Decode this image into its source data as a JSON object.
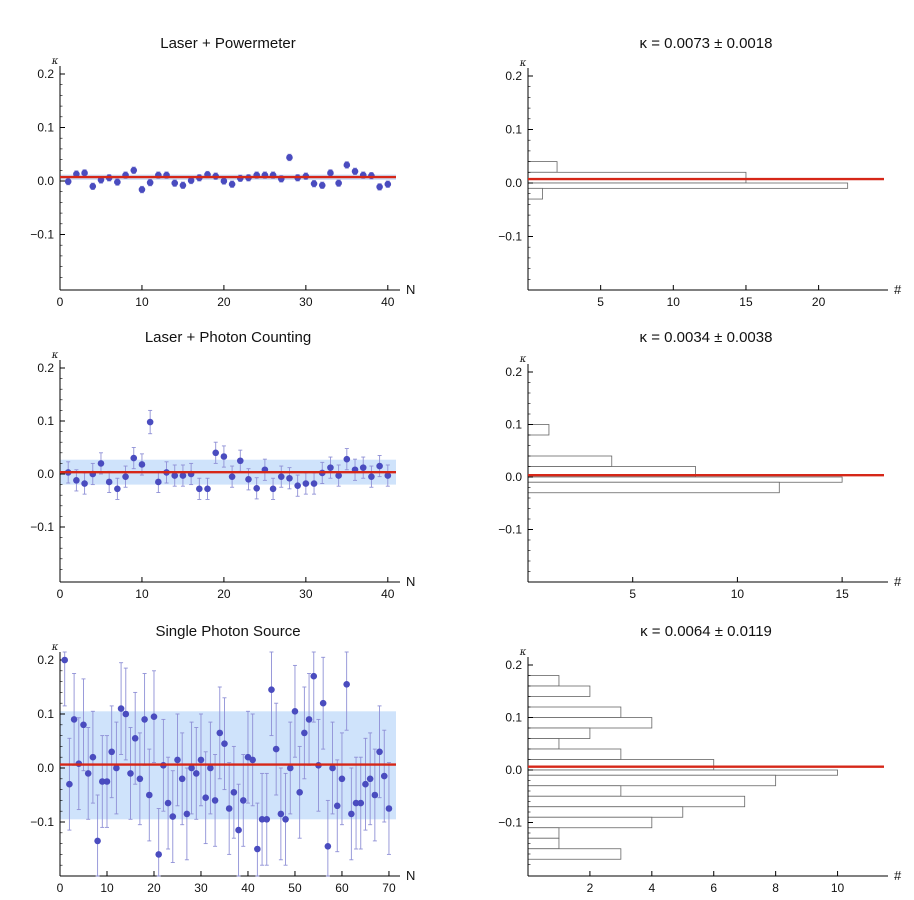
{
  "colors": {
    "point": "#4a4cbf",
    "errorbar": "#8f90d6",
    "band": "#cfe3fb",
    "fit": "#d62718",
    "hist_edge": "#666666",
    "axis": "#000000"
  },
  "chart_data": [
    {
      "type": "scatter",
      "title": "Laser + Powermeter",
      "xlabel": "N",
      "ylabel": "κ",
      "xlim": [
        0,
        41
      ],
      "ylim": [
        -0.2,
        0.2
      ],
      "xticks": [
        0,
        10,
        20,
        30,
        40
      ],
      "xtick_labels": [
        "0",
        "10",
        "20",
        "30",
        "40"
      ],
      "yticks": [
        0.2,
        0.1,
        0.0,
        -0.1
      ],
      "ytick_labels": [
        "0.2",
        "0.1",
        "0.0",
        "−0.1"
      ],
      "mean": 0.0073,
      "band": [
        0.002,
        0.012
      ],
      "points": [
        {
          "x": 1,
          "y": -0.001,
          "err": 0.006
        },
        {
          "x": 2,
          "y": 0.013,
          "err": 0.006
        },
        {
          "x": 3,
          "y": 0.015,
          "err": 0.006
        },
        {
          "x": 4,
          "y": -0.01,
          "err": 0.006
        },
        {
          "x": 5,
          "y": 0.002,
          "err": 0.006
        },
        {
          "x": 6,
          "y": 0.006,
          "err": 0.006
        },
        {
          "x": 7,
          "y": -0.002,
          "err": 0.006
        },
        {
          "x": 8,
          "y": 0.011,
          "err": 0.006
        },
        {
          "x": 9,
          "y": 0.02,
          "err": 0.006
        },
        {
          "x": 10,
          "y": -0.016,
          "err": 0.006
        },
        {
          "x": 11,
          "y": -0.003,
          "err": 0.006
        },
        {
          "x": 12,
          "y": 0.011,
          "err": 0.006
        },
        {
          "x": 13,
          "y": 0.011,
          "err": 0.006
        },
        {
          "x": 14,
          "y": -0.004,
          "err": 0.006
        },
        {
          "x": 15,
          "y": -0.008,
          "err": 0.006
        },
        {
          "x": 16,
          "y": 0.001,
          "err": 0.006
        },
        {
          "x": 17,
          "y": 0.006,
          "err": 0.006
        },
        {
          "x": 18,
          "y": 0.012,
          "err": 0.006
        },
        {
          "x": 19,
          "y": 0.009,
          "err": 0.006
        },
        {
          "x": 20,
          "y": 0.0,
          "err": 0.006
        },
        {
          "x": 21,
          "y": -0.006,
          "err": 0.006
        },
        {
          "x": 22,
          "y": 0.005,
          "err": 0.006
        },
        {
          "x": 23,
          "y": 0.006,
          "err": 0.006
        },
        {
          "x": 24,
          "y": 0.011,
          "err": 0.006
        },
        {
          "x": 25,
          "y": 0.011,
          "err": 0.006
        },
        {
          "x": 26,
          "y": 0.011,
          "err": 0.006
        },
        {
          "x": 27,
          "y": 0.004,
          "err": 0.006
        },
        {
          "x": 28,
          "y": 0.044,
          "err": 0.006
        },
        {
          "x": 29,
          "y": 0.006,
          "err": 0.006
        },
        {
          "x": 30,
          "y": 0.009,
          "err": 0.006
        },
        {
          "x": 31,
          "y": -0.005,
          "err": 0.006
        },
        {
          "x": 32,
          "y": -0.008,
          "err": 0.006
        },
        {
          "x": 33,
          "y": 0.015,
          "err": 0.006
        },
        {
          "x": 34,
          "y": -0.004,
          "err": 0.006
        },
        {
          "x": 35,
          "y": 0.03,
          "err": 0.006
        },
        {
          "x": 36,
          "y": 0.018,
          "err": 0.006
        },
        {
          "x": 37,
          "y": 0.011,
          "err": 0.006
        },
        {
          "x": 38,
          "y": 0.01,
          "err": 0.006
        },
        {
          "x": 39,
          "y": -0.011,
          "err": 0.006
        },
        {
          "x": 40,
          "y": -0.006,
          "err": 0.006
        }
      ]
    },
    {
      "type": "bar",
      "orientation": "horizontal",
      "title": "κ = 0.0073 ± 0.0018",
      "xlabel": "#",
      "ylabel": "κ",
      "xlim": [
        0,
        24.5
      ],
      "ylim": [
        -0.2,
        0.2
      ],
      "xticks": [
        5,
        10,
        15,
        20
      ],
      "xtick_labels": [
        "5",
        "10",
        "15",
        "20"
      ],
      "yticks": [
        0.2,
        0.1,
        0.0,
        -0.1
      ],
      "ytick_labels": [
        "0.2",
        "0.1",
        "0.0",
        "−0.1"
      ],
      "mean": 0.0073,
      "bins": [
        {
          "lo": 0.02,
          "hi": 0.04,
          "count": 2
        },
        {
          "lo": 0.0,
          "hi": 0.02,
          "count": 15
        },
        {
          "lo": -0.01,
          "hi": 0.0,
          "count": 22
        },
        {
          "lo": -0.03,
          "hi": -0.01,
          "count": 1
        }
      ]
    },
    {
      "type": "scatter",
      "title": "Laser + Photon Counting",
      "xlabel": "N",
      "ylabel": "κ",
      "xlim": [
        0,
        41
      ],
      "ylim": [
        -0.2,
        0.2
      ],
      "xticks": [
        0,
        10,
        20,
        30,
        40
      ],
      "xtick_labels": [
        "0",
        "10",
        "20",
        "30",
        "40"
      ],
      "yticks": [
        0.2,
        0.1,
        0.0,
        -0.1
      ],
      "ytick_labels": [
        "0.2",
        "0.1",
        "0.0",
        "−0.1"
      ],
      "mean": 0.0034,
      "band": [
        -0.02,
        0.027
      ],
      "points": [
        {
          "x": 1,
          "y": 0.003,
          "err": 0.02
        },
        {
          "x": 2,
          "y": -0.012,
          "err": 0.02
        },
        {
          "x": 3,
          "y": -0.018,
          "err": 0.02
        },
        {
          "x": 4,
          "y": 0.0,
          "err": 0.02
        },
        {
          "x": 5,
          "y": 0.02,
          "err": 0.02
        },
        {
          "x": 6,
          "y": -0.015,
          "err": 0.02
        },
        {
          "x": 7,
          "y": -0.028,
          "err": 0.02
        },
        {
          "x": 8,
          "y": -0.005,
          "err": 0.02
        },
        {
          "x": 9,
          "y": 0.03,
          "err": 0.02
        },
        {
          "x": 10,
          "y": 0.018,
          "err": 0.02
        },
        {
          "x": 11,
          "y": 0.098,
          "err": 0.022
        },
        {
          "x": 12,
          "y": -0.015,
          "err": 0.02
        },
        {
          "x": 13,
          "y": 0.003,
          "err": 0.02
        },
        {
          "x": 14,
          "y": -0.003,
          "err": 0.02
        },
        {
          "x": 15,
          "y": -0.003,
          "err": 0.02
        },
        {
          "x": 16,
          "y": 0.0,
          "err": 0.02
        },
        {
          "x": 17,
          "y": -0.028,
          "err": 0.02
        },
        {
          "x": 18,
          "y": -0.028,
          "err": 0.02
        },
        {
          "x": 19,
          "y": 0.04,
          "err": 0.02
        },
        {
          "x": 20,
          "y": 0.033,
          "err": 0.02
        },
        {
          "x": 21,
          "y": -0.005,
          "err": 0.02
        },
        {
          "x": 22,
          "y": 0.025,
          "err": 0.02
        },
        {
          "x": 23,
          "y": -0.01,
          "err": 0.02
        },
        {
          "x": 24,
          "y": -0.027,
          "err": 0.02
        },
        {
          "x": 25,
          "y": 0.008,
          "err": 0.02
        },
        {
          "x": 26,
          "y": -0.028,
          "err": 0.02
        },
        {
          "x": 27,
          "y": -0.005,
          "err": 0.02
        },
        {
          "x": 28,
          "y": -0.008,
          "err": 0.02
        },
        {
          "x": 29,
          "y": -0.022,
          "err": 0.02
        },
        {
          "x": 30,
          "y": -0.018,
          "err": 0.02
        },
        {
          "x": 31,
          "y": -0.018,
          "err": 0.02
        },
        {
          "x": 32,
          "y": 0.002,
          "err": 0.02
        },
        {
          "x": 33,
          "y": 0.012,
          "err": 0.02
        },
        {
          "x": 34,
          "y": -0.003,
          "err": 0.02
        },
        {
          "x": 35,
          "y": 0.028,
          "err": 0.02
        },
        {
          "x": 36,
          "y": 0.008,
          "err": 0.02
        },
        {
          "x": 37,
          "y": 0.012,
          "err": 0.02
        },
        {
          "x": 38,
          "y": -0.005,
          "err": 0.02
        },
        {
          "x": 39,
          "y": 0.015,
          "err": 0.02
        },
        {
          "x": 40,
          "y": -0.003,
          "err": 0.02
        }
      ]
    },
    {
      "type": "bar",
      "orientation": "horizontal",
      "title": "κ = 0.0034 ± 0.0038",
      "xlabel": "#",
      "ylabel": "κ",
      "xlim": [
        0,
        17
      ],
      "ylim": [
        -0.2,
        0.2
      ],
      "xticks": [
        5,
        10,
        15
      ],
      "xtick_labels": [
        "5",
        "10",
        "15"
      ],
      "yticks": [
        0.2,
        0.1,
        0.0,
        -0.1
      ],
      "ytick_labels": [
        "0.2",
        "0.1",
        "0.0",
        "−0.1"
      ],
      "mean": 0.0034,
      "bins": [
        {
          "lo": 0.08,
          "hi": 0.1,
          "count": 1
        },
        {
          "lo": 0.02,
          "hi": 0.04,
          "count": 4
        },
        {
          "lo": 0.0,
          "hi": 0.02,
          "count": 8
        },
        {
          "lo": -0.01,
          "hi": 0.0,
          "count": 15
        },
        {
          "lo": -0.03,
          "hi": -0.01,
          "count": 12
        }
      ]
    },
    {
      "type": "scatter",
      "title": "Single Photon Source",
      "xlabel": "N",
      "ylabel": "κ",
      "xlim": [
        0,
        71.5
      ],
      "ylim": [
        -0.2,
        0.2
      ],
      "xticks": [
        0,
        10,
        20,
        30,
        40,
        50,
        60,
        70
      ],
      "xtick_labels": [
        "0",
        "10",
        "20",
        "30",
        "40",
        "50",
        "60",
        "70"
      ],
      "yticks": [
        0.2,
        0.1,
        0.0,
        -0.1
      ],
      "ytick_labels": [
        "0.2",
        "0.1",
        "0.0",
        "−0.1"
      ],
      "mean": 0.0064,
      "band": [
        -0.095,
        0.105
      ],
      "points": [
        {
          "x": 1,
          "y": 0.2,
          "err": 0.085
        },
        {
          "x": 2,
          "y": -0.03,
          "err": 0.085
        },
        {
          "x": 3,
          "y": 0.09,
          "err": 0.085
        },
        {
          "x": 4,
          "y": 0.008,
          "err": 0.085
        },
        {
          "x": 5,
          "y": 0.08,
          "err": 0.085
        },
        {
          "x": 6,
          "y": -0.01,
          "err": 0.085
        },
        {
          "x": 7,
          "y": 0.02,
          "err": 0.085
        },
        {
          "x": 8,
          "y": -0.135,
          "err": 0.085
        },
        {
          "x": 9,
          "y": -0.025,
          "err": 0.085
        },
        {
          "x": 10,
          "y": -0.025,
          "err": 0.085
        },
        {
          "x": 11,
          "y": 0.03,
          "err": 0.085
        },
        {
          "x": 12,
          "y": 0.0,
          "err": 0.085
        },
        {
          "x": 13,
          "y": 0.11,
          "err": 0.085
        },
        {
          "x": 14,
          "y": 0.1,
          "err": 0.085
        },
        {
          "x": 15,
          "y": -0.01,
          "err": 0.085
        },
        {
          "x": 16,
          "y": 0.055,
          "err": 0.085
        },
        {
          "x": 17,
          "y": -0.02,
          "err": 0.085
        },
        {
          "x": 18,
          "y": 0.09,
          "err": 0.085
        },
        {
          "x": 19,
          "y": -0.05,
          "err": 0.085
        },
        {
          "x": 20,
          "y": 0.095,
          "err": 0.085
        },
        {
          "x": 21,
          "y": -0.16,
          "err": 0.085
        },
        {
          "x": 22,
          "y": 0.005,
          "err": 0.085
        },
        {
          "x": 23,
          "y": -0.065,
          "err": 0.085
        },
        {
          "x": 24,
          "y": -0.09,
          "err": 0.085
        },
        {
          "x": 25,
          "y": 0.015,
          "err": 0.085
        },
        {
          "x": 26,
          "y": -0.02,
          "err": 0.085
        },
        {
          "x": 27,
          "y": -0.085,
          "err": 0.085
        },
        {
          "x": 28,
          "y": 0.0,
          "err": 0.085
        },
        {
          "x": 29,
          "y": -0.01,
          "err": 0.085
        },
        {
          "x": 30,
          "y": 0.015,
          "err": 0.085
        },
        {
          "x": 31,
          "y": -0.055,
          "err": 0.085
        },
        {
          "x": 32,
          "y": 0.0,
          "err": 0.085
        },
        {
          "x": 33,
          "y": -0.06,
          "err": 0.085
        },
        {
          "x": 34,
          "y": 0.065,
          "err": 0.085
        },
        {
          "x": 35,
          "y": 0.045,
          "err": 0.085
        },
        {
          "x": 36,
          "y": -0.075,
          "err": 0.085
        },
        {
          "x": 37,
          "y": -0.045,
          "err": 0.085
        },
        {
          "x": 38,
          "y": -0.115,
          "err": 0.085
        },
        {
          "x": 39,
          "y": -0.06,
          "err": 0.085
        },
        {
          "x": 40,
          "y": 0.02,
          "err": 0.085
        },
        {
          "x": 41,
          "y": 0.015,
          "err": 0.085
        },
        {
          "x": 42,
          "y": -0.15,
          "err": 0.085
        },
        {
          "x": 43,
          "y": -0.095,
          "err": 0.085
        },
        {
          "x": 44,
          "y": -0.095,
          "err": 0.085
        },
        {
          "x": 45,
          "y": 0.145,
          "err": 0.085
        },
        {
          "x": 46,
          "y": 0.035,
          "err": 0.085
        },
        {
          "x": 47,
          "y": -0.085,
          "err": 0.085
        },
        {
          "x": 48,
          "y": -0.095,
          "err": 0.085
        },
        {
          "x": 49,
          "y": 0.0,
          "err": 0.085
        },
        {
          "x": 50,
          "y": 0.105,
          "err": 0.085
        },
        {
          "x": 51,
          "y": -0.045,
          "err": 0.085
        },
        {
          "x": 52,
          "y": 0.065,
          "err": 0.085
        },
        {
          "x": 53,
          "y": 0.09,
          "err": 0.085
        },
        {
          "x": 54,
          "y": 0.17,
          "err": 0.085
        },
        {
          "x": 55,
          "y": 0.005,
          "err": 0.085
        },
        {
          "x": 56,
          "y": 0.12,
          "err": 0.085
        },
        {
          "x": 57,
          "y": -0.145,
          "err": 0.085
        },
        {
          "x": 58,
          "y": 0.0,
          "err": 0.085
        },
        {
          "x": 59,
          "y": -0.07,
          "err": 0.085
        },
        {
          "x": 60,
          "y": -0.02,
          "err": 0.085
        },
        {
          "x": 61,
          "y": 0.155,
          "err": 0.085
        },
        {
          "x": 62,
          "y": -0.085,
          "err": 0.085
        },
        {
          "x": 63,
          "y": -0.065,
          "err": 0.085
        },
        {
          "x": 64,
          "y": -0.065,
          "err": 0.085
        },
        {
          "x": 65,
          "y": -0.03,
          "err": 0.085
        },
        {
          "x": 66,
          "y": -0.02,
          "err": 0.085
        },
        {
          "x": 67,
          "y": -0.05,
          "err": 0.085
        },
        {
          "x": 68,
          "y": 0.03,
          "err": 0.085
        },
        {
          "x": 69,
          "y": -0.015,
          "err": 0.085
        },
        {
          "x": 70,
          "y": -0.075,
          "err": 0.085
        }
      ]
    },
    {
      "type": "bar",
      "orientation": "horizontal",
      "title": "κ = 0.0064 ± 0.0119",
      "xlabel": "#",
      "ylabel": "κ",
      "xlim": [
        0,
        11.5
      ],
      "ylim": [
        -0.2,
        0.2
      ],
      "xticks": [
        2,
        4,
        6,
        8,
        10
      ],
      "xtick_labels": [
        "2",
        "4",
        "6",
        "8",
        "10"
      ],
      "yticks": [
        0.2,
        0.1,
        0.0,
        -0.1
      ],
      "ytick_labels": [
        "0.2",
        "0.1",
        "0.0",
        "−0.1"
      ],
      "mean": 0.0064,
      "bins": [
        {
          "lo": 0.16,
          "hi": 0.18,
          "count": 1
        },
        {
          "lo": 0.14,
          "hi": 0.16,
          "count": 2
        },
        {
          "lo": 0.1,
          "hi": 0.12,
          "count": 3
        },
        {
          "lo": 0.08,
          "hi": 0.1,
          "count": 4
        },
        {
          "lo": 0.06,
          "hi": 0.08,
          "count": 2
        },
        {
          "lo": 0.04,
          "hi": 0.06,
          "count": 1
        },
        {
          "lo": 0.02,
          "hi": 0.04,
          "count": 3
        },
        {
          "lo": 0.0,
          "hi": 0.02,
          "count": 6
        },
        {
          "lo": -0.01,
          "hi": 0.0,
          "count": 10
        },
        {
          "lo": -0.03,
          "hi": -0.01,
          "count": 8
        },
        {
          "lo": -0.05,
          "hi": -0.03,
          "count": 3
        },
        {
          "lo": -0.07,
          "hi": -0.05,
          "count": 7
        },
        {
          "lo": -0.09,
          "hi": -0.07,
          "count": 5
        },
        {
          "lo": -0.11,
          "hi": -0.09,
          "count": 4
        },
        {
          "lo": -0.13,
          "hi": -0.11,
          "count": 1
        },
        {
          "lo": -0.15,
          "hi": -0.13,
          "count": 1
        },
        {
          "lo": -0.17,
          "hi": -0.15,
          "count": 3
        }
      ]
    }
  ]
}
